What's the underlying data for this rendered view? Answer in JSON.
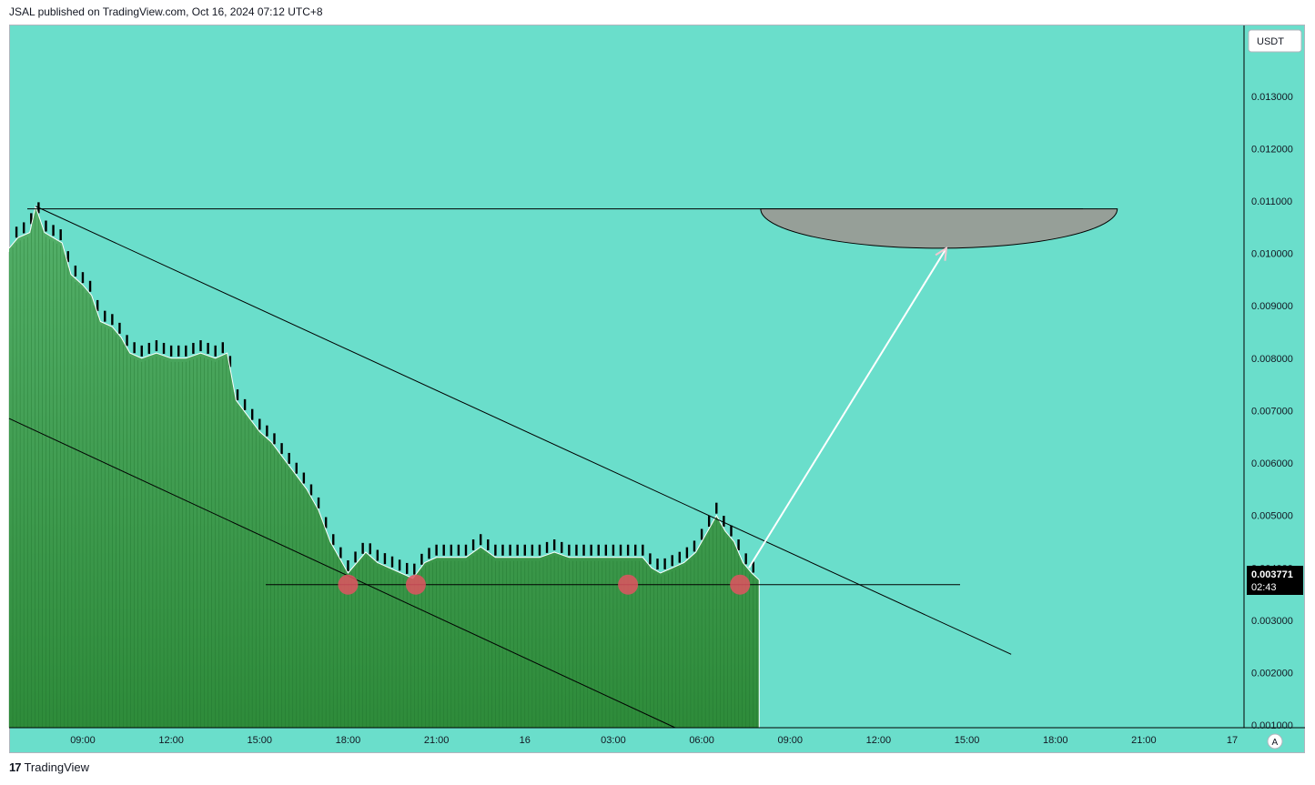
{
  "header": {
    "published": "JSAL published on TradingView.com, Oct 16, 2024 07:12 UTC+8"
  },
  "footer": {
    "brand": "TradingView",
    "logo_glyph": "17"
  },
  "price_axis": {
    "currency": "USDT",
    "auto_label": "A"
  },
  "last_price": {
    "value": "0.003771",
    "countdown": "02:43"
  },
  "colors": {
    "background": "#6adecb",
    "area_fill": "#2e8b3a",
    "area_fill_top": "#54b06a",
    "candle": "#000000",
    "marker": "#e05460",
    "arc_fill": "#969f98",
    "arrow": "#ffffff"
  },
  "chart_data": {
    "type": "area",
    "symbol_currency": "USDT",
    "x_ticks": [
      "09:00",
      "12:00",
      "15:00",
      "18:00",
      "21:00",
      "16",
      "03:00",
      "06:00",
      "09:00",
      "12:00",
      "15:00",
      "18:00",
      "21:00",
      "17"
    ],
    "y_ticks": [
      "0.013000",
      "0.012000",
      "0.011000",
      "0.010000",
      "0.009000",
      "0.008000",
      "0.007000",
      "0.006000",
      "0.005000",
      "0.004000",
      "0.003000",
      "0.002000",
      "0.001000"
    ],
    "ylim": [
      0.00095,
      0.01435
    ],
    "x_hours_range": [
      6.5,
      48.4
    ],
    "series": [
      {
        "points": [
          [
            6.5,
            0.0101
          ],
          [
            6.8,
            0.0103
          ],
          [
            7.2,
            0.0104
          ],
          [
            7.4,
            0.0109
          ],
          [
            7.7,
            0.0104
          ],
          [
            8.0,
            0.0103
          ],
          [
            8.3,
            0.0102
          ],
          [
            8.6,
            0.0096
          ],
          [
            9.0,
            0.0094
          ],
          [
            9.3,
            0.0092
          ],
          [
            9.6,
            0.0087
          ],
          [
            10.0,
            0.0086
          ],
          [
            10.3,
            0.0084
          ],
          [
            10.6,
            0.0081
          ],
          [
            11.0,
            0.008
          ],
          [
            11.5,
            0.0081
          ],
          [
            12.0,
            0.008
          ],
          [
            12.5,
            0.008
          ],
          [
            13.0,
            0.0081
          ],
          [
            13.5,
            0.008
          ],
          [
            13.9,
            0.0081
          ],
          [
            14.2,
            0.0072
          ],
          [
            14.6,
            0.0069
          ],
          [
            15.0,
            0.0066
          ],
          [
            15.4,
            0.0064
          ],
          [
            15.8,
            0.0061
          ],
          [
            16.2,
            0.0058
          ],
          [
            16.6,
            0.0055
          ],
          [
            17.0,
            0.0051
          ],
          [
            17.4,
            0.0045
          ],
          [
            17.8,
            0.0041
          ],
          [
            18.0,
            0.0039
          ],
          [
            18.3,
            0.0041
          ],
          [
            18.6,
            0.0043
          ],
          [
            19.0,
            0.0041
          ],
          [
            19.4,
            0.004
          ],
          [
            19.8,
            0.0039
          ],
          [
            20.2,
            0.0038
          ],
          [
            20.6,
            0.0041
          ],
          [
            21.0,
            0.0042
          ],
          [
            21.5,
            0.0042
          ],
          [
            22.0,
            0.0042
          ],
          [
            22.5,
            0.0044
          ],
          [
            23.0,
            0.0042
          ],
          [
            23.5,
            0.0042
          ],
          [
            24.0,
            0.0042
          ],
          [
            24.5,
            0.0042
          ],
          [
            25.0,
            0.0043
          ],
          [
            25.5,
            0.0042
          ],
          [
            26.0,
            0.0042
          ],
          [
            26.5,
            0.0042
          ],
          [
            27.0,
            0.0042
          ],
          [
            27.5,
            0.0042
          ],
          [
            28.0,
            0.0042
          ],
          [
            28.3,
            0.004
          ],
          [
            28.6,
            0.0039
          ],
          [
            29.0,
            0.004
          ],
          [
            29.4,
            0.0041
          ],
          [
            29.8,
            0.0043
          ],
          [
            30.2,
            0.0047
          ],
          [
            30.5,
            0.005
          ],
          [
            30.8,
            0.0047
          ],
          [
            31.1,
            0.0045
          ],
          [
            31.4,
            0.0041
          ],
          [
            31.7,
            0.0039
          ],
          [
            31.95,
            0.003771
          ]
        ]
      }
    ],
    "annotations": {
      "horizontal_resistance": 0.01085,
      "support_level": 0.00368,
      "support_touches_hours": [
        18.0,
        20.3,
        27.5,
        31.3
      ],
      "downtrend_line": [
        [
          7.4,
          0.0109
        ],
        [
          40.5,
          0.00235
        ]
      ],
      "lower_trend_line": [
        [
          6.5,
          0.00685
        ],
        [
          29.1,
          0.00095
        ]
      ],
      "projection_arrow": [
        [
          31.6,
          0.004
        ],
        [
          38.3,
          0.0101
        ]
      ],
      "target_arc": {
        "from_hours": 32.0,
        "to_hours": 44.1,
        "top": 0.01085,
        "bottom": 0.0101
      }
    }
  }
}
